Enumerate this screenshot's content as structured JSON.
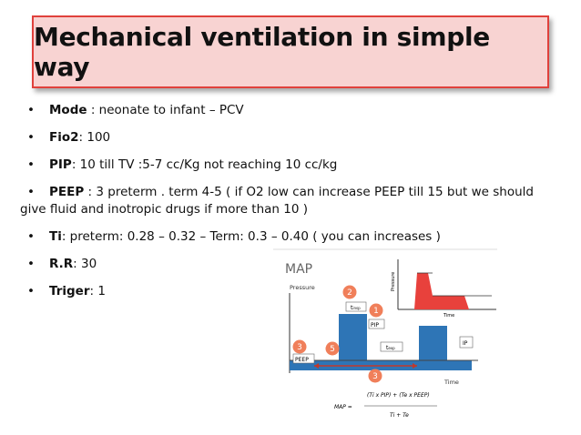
{
  "title": "Mechanical ventilation in simple way",
  "bullets": [
    {
      "label": "Mode",
      "text": " : neonate to infant – PCV"
    },
    {
      "label": "Fio2",
      "text": ": 100"
    },
    {
      "label": "PIP",
      "text": ": 10 till TV :5-7 cc/Kg not reaching 10 cc/kg"
    },
    {
      "label": "PEEP",
      "text": " : 3 preterm . term 4-5 ( if O2 low can increase PEEP till 15 but we should give fluid and inotropic drugs if more than 10  )"
    },
    {
      "label": "Ti",
      "text": ": preterm: 0.28 – 0.32 – Term: 0.3 – 0.40 ( you can increases )"
    },
    {
      "label": "R.R",
      "text": ": 30"
    },
    {
      "label": "Triger",
      "text": ": 1"
    }
  ],
  "diagram": {
    "title": "MAP",
    "y_label": "Pressure",
    "x_label": "Time",
    "inset_y_label": "Pressure",
    "inset_x_label": "Time",
    "t_insp": "t",
    "t_insp_sub": "insp",
    "t_exp": "t",
    "t_exp_sub": "exp",
    "pip": "PIP",
    "peep": "PEEP",
    "ip": "IP",
    "markers": [
      "2",
      "1",
      "3",
      "5",
      "3"
    ],
    "formula_lhs": "MAP =",
    "formula_num": "(Ti x PIP) + (Te x PEEP)",
    "formula_den": "Ti + Te"
  }
}
